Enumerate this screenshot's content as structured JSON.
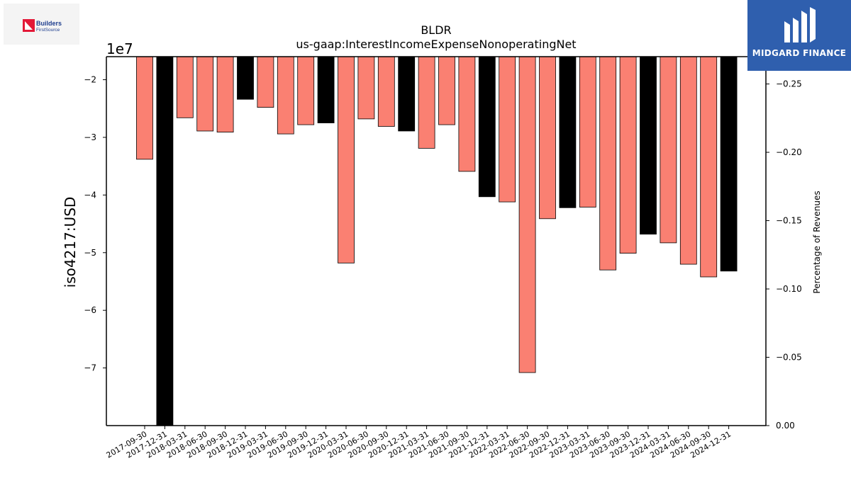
{
  "branding": {
    "left_logo_line1": "Builders",
    "left_logo_line2": "FirstSource",
    "right_logo_text": "MIDGARD FINANCE",
    "left_logo_icon": "builders-firstsource-logo-icon",
    "right_logo_icon": "midgard-finance-logo-icon"
  },
  "chart_data": {
    "type": "bar",
    "title": "BLDR",
    "subtitle": "us-gaap:InterestIncomeExpenseNonoperatingNet",
    "ylabel": "iso4217:USD",
    "y2label": "Percentage of Revenues",
    "offset_label": "1e7",
    "ylim": [
      -8.0,
      -1.6
    ],
    "y_scale": 10000000,
    "y_ticks": [
      -2,
      -3,
      -4,
      -5,
      -6,
      -7
    ],
    "y_tick_labels": [
      "−2",
      "−3",
      "−4",
      "−5",
      "−6",
      "−7"
    ],
    "y2lim": [
      0.0,
      -0.27
    ],
    "y2_ticks": [
      -0.25,
      -0.2,
      -0.15,
      -0.1,
      -0.05,
      0.0
    ],
    "y2_tick_labels": [
      "−0.25",
      "−0.20",
      "−0.15",
      "−0.10",
      "−0.05",
      "0.00"
    ],
    "grid": false,
    "colors": {
      "quarter": "#fa8072",
      "year_end": "#000000"
    },
    "categories": [
      "2017-09-30",
      "2017-12-31",
      "2018-03-31",
      "2018-06-30",
      "2018-09-30",
      "2018-12-31",
      "2019-03-31",
      "2019-06-30",
      "2019-09-30",
      "2019-12-31",
      "2020-03-31",
      "2020-06-30",
      "2020-09-30",
      "2020-12-31",
      "2021-03-31",
      "2021-06-30",
      "2021-09-30",
      "2021-12-31",
      "2022-03-31",
      "2022-06-30",
      "2022-09-30",
      "2022-12-31",
      "2023-03-31",
      "2023-06-30",
      "2023-09-30",
      "2023-12-31",
      "2024-03-31",
      "2024-06-30",
      "2024-09-30",
      "2024-12-31"
    ],
    "values": [
      -33800000,
      -80000000,
      -26600000,
      -28900000,
      -29100000,
      -23400000,
      -24800000,
      -29400000,
      -27800000,
      -27500000,
      -51800000,
      -26800000,
      -28100000,
      -28900000,
      -31900000,
      -27800000,
      -35900000,
      -40300000,
      -41200000,
      -70800000,
      -44100000,
      -42200000,
      -42100000,
      -53000000,
      -50100000,
      -46800000,
      -48300000,
      -52000000,
      -54200000,
      -53200000
    ]
  }
}
